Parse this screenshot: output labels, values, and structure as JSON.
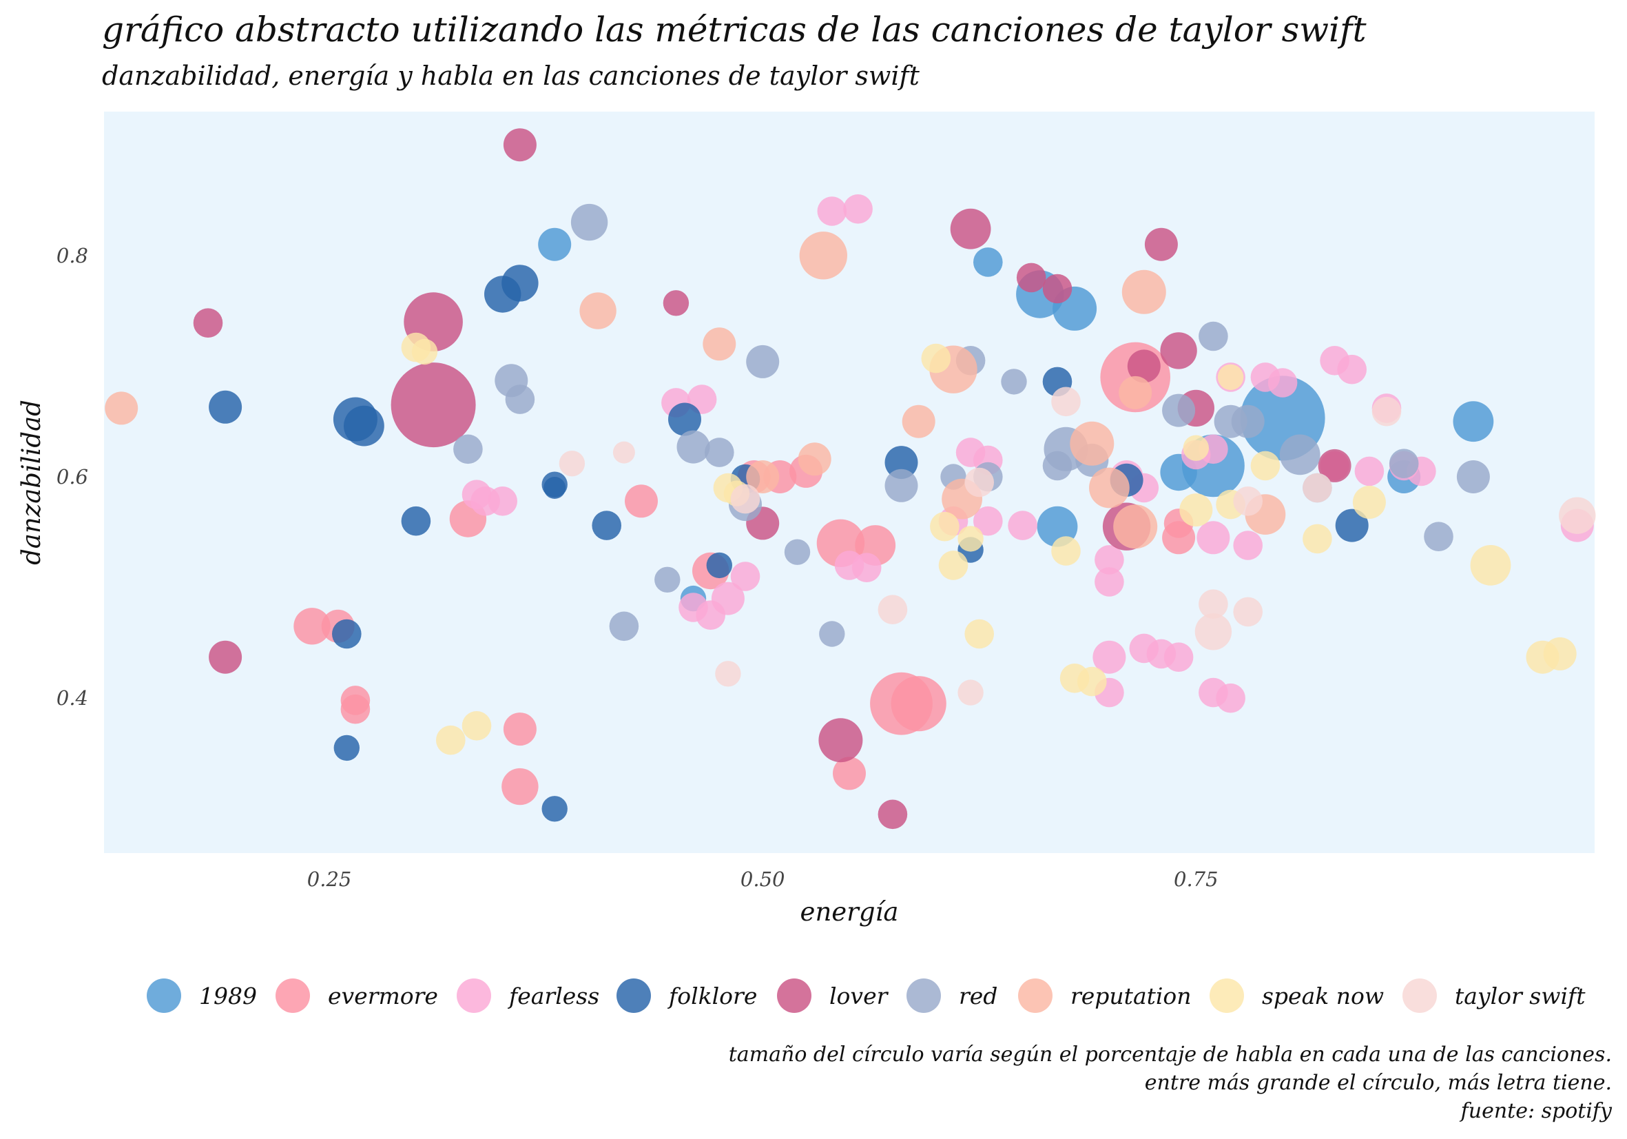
{
  "title": "gráfico abstracto utilizando las métricas de las canciones de taylor swift",
  "subtitle": "danzabilidad, energía y habla en las canciones de taylor swift",
  "caption": [
    "tamaño del círculo varía según el porcentaje de habla en cada una de las canciones.",
    "entre más grande el círculo, más letra tiene.",
    "fuente: spotify"
  ],
  "chart_data": {
    "type": "scatter",
    "xlabel": "energía",
    "ylabel": "danzabilidad",
    "xlim": [
      0.12,
      0.98
    ],
    "ylim": [
      0.26,
      0.93
    ],
    "xticks": [
      0.25,
      0.5,
      0.75
    ],
    "yticks": [
      0.4,
      0.6,
      0.8
    ],
    "xtick_labels": [
      "0.25",
      "0.50",
      "0.75"
    ],
    "ytick_labels": [
      "0.4",
      "0.6",
      "0.8"
    ],
    "background": "#eaf5fd",
    "grid": false,
    "legend_position": "bottom",
    "size_variable": "speechiness (habla)",
    "series": [
      {
        "name": "1989",
        "color": "#4f9ad4",
        "points": [
          [
            0.38,
            0.81,
            0.05
          ],
          [
            0.63,
            0.794,
            0.045
          ],
          [
            0.66,
            0.765,
            0.07
          ],
          [
            0.68,
            0.752,
            0.065
          ],
          [
            0.8,
            0.653,
            0.12
          ],
          [
            0.76,
            0.61,
            0.09
          ],
          [
            0.91,
            0.65,
            0.06
          ],
          [
            0.87,
            0.6,
            0.05
          ],
          [
            0.67,
            0.555,
            0.06
          ],
          [
            0.74,
            0.604,
            0.055
          ],
          [
            0.46,
            0.49,
            0.04
          ]
        ]
      },
      {
        "name": "evermore",
        "color": "#fc92a3",
        "points": [
          [
            0.24,
            0.465,
            0.055
          ],
          [
            0.255,
            0.465,
            0.05
          ],
          [
            0.265,
            0.398,
            0.045
          ],
          [
            0.265,
            0.39,
            0.045
          ],
          [
            0.33,
            0.562,
            0.055
          ],
          [
            0.36,
            0.372,
            0.05
          ],
          [
            0.36,
            0.32,
            0.055
          ],
          [
            0.43,
            0.578,
            0.05
          ],
          [
            0.47,
            0.515,
            0.055
          ],
          [
            0.495,
            0.6,
            0.05
          ],
          [
            0.51,
            0.6,
            0.05
          ],
          [
            0.525,
            0.605,
            0.05
          ],
          [
            0.545,
            0.54,
            0.07
          ],
          [
            0.565,
            0.538,
            0.06
          ],
          [
            0.58,
            0.395,
            0.09
          ],
          [
            0.59,
            0.395,
            0.08
          ],
          [
            0.55,
            0.332,
            0.05
          ],
          [
            0.715,
            0.69,
            0.1
          ],
          [
            0.74,
            0.545,
            0.05
          ],
          [
            0.74,
            0.558,
            0.045
          ]
        ]
      },
      {
        "name": "fearless",
        "color": "#fba8d6",
        "points": [
          [
            0.54,
            0.84,
            0.045
          ],
          [
            0.555,
            0.842,
            0.045
          ],
          [
            0.45,
            0.667,
            0.045
          ],
          [
            0.465,
            0.67,
            0.045
          ],
          [
            0.335,
            0.584,
            0.045
          ],
          [
            0.34,
            0.578,
            0.045
          ],
          [
            0.35,
            0.578,
            0.045
          ],
          [
            0.46,
            0.482,
            0.045
          ],
          [
            0.47,
            0.475,
            0.045
          ],
          [
            0.48,
            0.49,
            0.05
          ],
          [
            0.49,
            0.51,
            0.045
          ],
          [
            0.55,
            0.52,
            0.045
          ],
          [
            0.56,
            0.518,
            0.045
          ],
          [
            0.62,
            0.622,
            0.045
          ],
          [
            0.63,
            0.615,
            0.045
          ],
          [
            0.61,
            0.56,
            0.045
          ],
          [
            0.63,
            0.56,
            0.045
          ],
          [
            0.65,
            0.556,
            0.045
          ],
          [
            0.7,
            0.525,
            0.045
          ],
          [
            0.7,
            0.505,
            0.045
          ],
          [
            0.71,
            0.6,
            0.05
          ],
          [
            0.72,
            0.59,
            0.045
          ],
          [
            0.7,
            0.437,
            0.05
          ],
          [
            0.72,
            0.445,
            0.045
          ],
          [
            0.73,
            0.44,
            0.045
          ],
          [
            0.74,
            0.437,
            0.045
          ],
          [
            0.7,
            0.405,
            0.045
          ],
          [
            0.76,
            0.405,
            0.045
          ],
          [
            0.77,
            0.4,
            0.045
          ],
          [
            0.75,
            0.62,
            0.045
          ],
          [
            0.76,
            0.625,
            0.045
          ],
          [
            0.76,
            0.545,
            0.05
          ],
          [
            0.78,
            0.538,
            0.045
          ],
          [
            0.77,
            0.69,
            0.045
          ],
          [
            0.79,
            0.69,
            0.045
          ],
          [
            0.8,
            0.685,
            0.045
          ],
          [
            0.83,
            0.705,
            0.045
          ],
          [
            0.84,
            0.697,
            0.045
          ],
          [
            0.83,
            0.61,
            0.045
          ],
          [
            0.85,
            0.605,
            0.045
          ],
          [
            0.87,
            0.61,
            0.045
          ],
          [
            0.88,
            0.605,
            0.045
          ],
          [
            0.86,
            0.662,
            0.045
          ],
          [
            0.97,
            0.556,
            0.05
          ]
        ]
      },
      {
        "name": "folklore",
        "color": "#2764a9",
        "points": [
          [
            0.19,
            0.663,
            0.05
          ],
          [
            0.265,
            0.652,
            0.065
          ],
          [
            0.27,
            0.646,
            0.06
          ],
          [
            0.35,
            0.765,
            0.055
          ],
          [
            0.36,
            0.775,
            0.055
          ],
          [
            0.3,
            0.56,
            0.045
          ],
          [
            0.38,
            0.593,
            0.04
          ],
          [
            0.38,
            0.59,
            0.035
          ],
          [
            0.41,
            0.556,
            0.045
          ],
          [
            0.26,
            0.458,
            0.045
          ],
          [
            0.26,
            0.355,
            0.04
          ],
          [
            0.38,
            0.3,
            0.04
          ],
          [
            0.455,
            0.652,
            0.05
          ],
          [
            0.475,
            0.52,
            0.04
          ],
          [
            0.49,
            0.598,
            0.045
          ],
          [
            0.58,
            0.613,
            0.05
          ],
          [
            0.62,
            0.534,
            0.04
          ],
          [
            0.67,
            0.686,
            0.045
          ],
          [
            0.71,
            0.597,
            0.05
          ],
          [
            0.84,
            0.556,
            0.05
          ]
        ]
      },
      {
        "name": "lover",
        "color": "#cb5485",
        "points": [
          [
            0.18,
            0.739,
            0.045
          ],
          [
            0.19,
            0.437,
            0.05
          ],
          [
            0.31,
            0.74,
            0.085
          ],
          [
            0.31,
            0.665,
            0.12
          ],
          [
            0.36,
            0.9,
            0.05
          ],
          [
            0.45,
            0.757,
            0.04
          ],
          [
            0.5,
            0.558,
            0.05
          ],
          [
            0.545,
            0.362,
            0.065
          ],
          [
            0.575,
            0.295,
            0.045
          ],
          [
            0.62,
            0.824,
            0.06
          ],
          [
            0.655,
            0.78,
            0.045
          ],
          [
            0.67,
            0.77,
            0.045
          ],
          [
            0.71,
            0.555,
            0.07
          ],
          [
            0.72,
            0.7,
            0.05
          ],
          [
            0.73,
            0.81,
            0.05
          ],
          [
            0.74,
            0.714,
            0.055
          ],
          [
            0.75,
            0.662,
            0.055
          ],
          [
            0.83,
            0.61,
            0.05
          ]
        ]
      },
      {
        "name": "red",
        "color": "#98a9cb",
        "points": [
          [
            0.4,
            0.83,
            0.055
          ],
          [
            0.355,
            0.687,
            0.05
          ],
          [
            0.36,
            0.67,
            0.045
          ],
          [
            0.33,
            0.625,
            0.045
          ],
          [
            0.5,
            0.704,
            0.05
          ],
          [
            0.46,
            0.627,
            0.05
          ],
          [
            0.475,
            0.622,
            0.045
          ],
          [
            0.42,
            0.465,
            0.045
          ],
          [
            0.445,
            0.507,
            0.04
          ],
          [
            0.52,
            0.532,
            0.04
          ],
          [
            0.54,
            0.458,
            0.04
          ],
          [
            0.58,
            0.592,
            0.05
          ],
          [
            0.62,
            0.705,
            0.045
          ],
          [
            0.63,
            0.6,
            0.045
          ],
          [
            0.61,
            0.6,
            0.04
          ],
          [
            0.645,
            0.686,
            0.04
          ],
          [
            0.67,
            0.61,
            0.045
          ],
          [
            0.675,
            0.625,
            0.065
          ],
          [
            0.69,
            0.615,
            0.05
          ],
          [
            0.74,
            0.66,
            0.05
          ],
          [
            0.76,
            0.727,
            0.045
          ],
          [
            0.77,
            0.65,
            0.05
          ],
          [
            0.78,
            0.65,
            0.05
          ],
          [
            0.81,
            0.62,
            0.06
          ],
          [
            0.82,
            0.59,
            0.045
          ],
          [
            0.87,
            0.612,
            0.045
          ],
          [
            0.89,
            0.546,
            0.045
          ],
          [
            0.91,
            0.6,
            0.05
          ],
          [
            0.49,
            0.575,
            0.05
          ]
        ]
      },
      {
        "name": "reputation",
        "color": "#fbb7a4",
        "points": [
          [
            0.13,
            0.662,
            0.05
          ],
          [
            0.405,
            0.75,
            0.055
          ],
          [
            0.475,
            0.72,
            0.05
          ],
          [
            0.535,
            0.8,
            0.07
          ],
          [
            0.53,
            0.616,
            0.05
          ],
          [
            0.5,
            0.6,
            0.05
          ],
          [
            0.59,
            0.65,
            0.05
          ],
          [
            0.61,
            0.697,
            0.07
          ],
          [
            0.615,
            0.58,
            0.06
          ],
          [
            0.69,
            0.63,
            0.065
          ],
          [
            0.7,
            0.59,
            0.06
          ],
          [
            0.715,
            0.555,
            0.065
          ],
          [
            0.715,
            0.676,
            0.05
          ],
          [
            0.72,
            0.767,
            0.065
          ],
          [
            0.79,
            0.566,
            0.06
          ]
        ]
      },
      {
        "name": "speak now",
        "color": "#fce6a9",
        "points": [
          [
            0.3,
            0.717,
            0.045
          ],
          [
            0.305,
            0.713,
            0.04
          ],
          [
            0.32,
            0.362,
            0.045
          ],
          [
            0.335,
            0.375,
            0.045
          ],
          [
            0.48,
            0.59,
            0.045
          ],
          [
            0.485,
            0.585,
            0.04
          ],
          [
            0.6,
            0.707,
            0.045
          ],
          [
            0.605,
            0.555,
            0.045
          ],
          [
            0.61,
            0.52,
            0.045
          ],
          [
            0.62,
            0.544,
            0.04
          ],
          [
            0.625,
            0.458,
            0.045
          ],
          [
            0.675,
            0.533,
            0.045
          ],
          [
            0.68,
            0.418,
            0.045
          ],
          [
            0.69,
            0.415,
            0.045
          ],
          [
            0.77,
            0.69,
            0.04
          ],
          [
            0.75,
            0.626,
            0.04
          ],
          [
            0.75,
            0.57,
            0.05
          ],
          [
            0.77,
            0.575,
            0.045
          ],
          [
            0.79,
            0.61,
            0.045
          ],
          [
            0.82,
            0.544,
            0.045
          ],
          [
            0.85,
            0.577,
            0.05
          ],
          [
            0.92,
            0.52,
            0.06
          ],
          [
            0.95,
            0.437,
            0.05
          ],
          [
            0.96,
            0.44,
            0.05
          ]
        ]
      },
      {
        "name": "taylor swift",
        "color": "#f8d7d4",
        "points": [
          [
            0.39,
            0.612,
            0.04
          ],
          [
            0.42,
            0.622,
            0.035
          ],
          [
            0.49,
            0.58,
            0.045
          ],
          [
            0.48,
            0.422,
            0.04
          ],
          [
            0.575,
            0.48,
            0.045
          ],
          [
            0.62,
            0.405,
            0.04
          ],
          [
            0.625,
            0.595,
            0.045
          ],
          [
            0.675,
            0.668,
            0.045
          ],
          [
            0.76,
            0.485,
            0.045
          ],
          [
            0.76,
            0.46,
            0.055
          ],
          [
            0.78,
            0.478,
            0.045
          ],
          [
            0.78,
            0.578,
            0.045
          ],
          [
            0.82,
            0.59,
            0.045
          ],
          [
            0.86,
            0.659,
            0.045
          ],
          [
            0.97,
            0.565,
            0.055
          ]
        ]
      }
    ]
  }
}
